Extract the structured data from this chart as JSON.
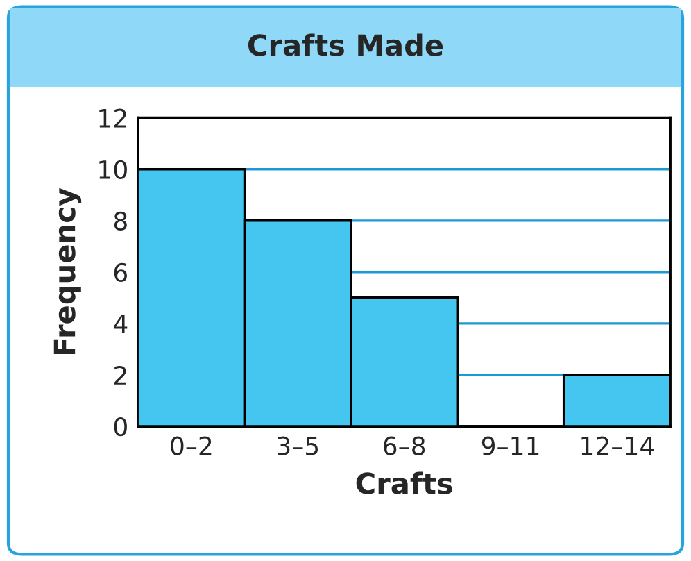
{
  "chart_data": {
    "type": "bar",
    "title": "Crafts Made",
    "xlabel": "Crafts",
    "ylabel": "Frequency",
    "categories": [
      "0–2",
      "3–5",
      "6–8",
      "9–11",
      "12–14"
    ],
    "values": [
      10,
      8,
      5,
      0,
      2
    ],
    "color": "#45c6f0",
    "ylim": [
      0,
      12
    ],
    "yticks": [
      0,
      2,
      4,
      6,
      8,
      10,
      12
    ],
    "grid": "y"
  }
}
